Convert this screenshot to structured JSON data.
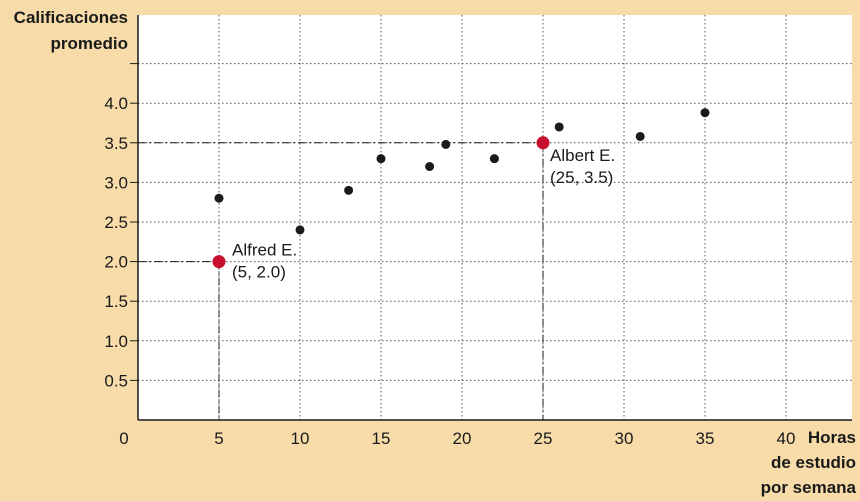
{
  "chart_data": {
    "type": "scatter",
    "ylabel": [
      "Calificaciones",
      "promedio"
    ],
    "xlabel": [
      "Horas",
      "de estudio",
      "por semana"
    ],
    "xlim": [
      0,
      42
    ],
    "ylim": [
      0,
      4.6
    ],
    "x_ticks": [
      0,
      5,
      10,
      15,
      20,
      25,
      30,
      35,
      40
    ],
    "y_ticks": [
      "0.5",
      "1.0",
      "1.5",
      "2.0",
      "2.5",
      "3.0",
      "3.5",
      "4.0"
    ],
    "y_grid": [
      0.5,
      1.0,
      1.5,
      2.0,
      2.5,
      3.0,
      3.5,
      4.0,
      4.5
    ],
    "grid": true,
    "points": [
      {
        "x": 5,
        "y": 2.8
      },
      {
        "x": 10,
        "y": 2.4
      },
      {
        "x": 13,
        "y": 2.9
      },
      {
        "x": 15,
        "y": 3.3
      },
      {
        "x": 18,
        "y": 3.2
      },
      {
        "x": 19,
        "y": 3.48
      },
      {
        "x": 22,
        "y": 3.3
      },
      {
        "x": 26,
        "y": 3.7
      },
      {
        "x": 31,
        "y": 3.58
      },
      {
        "x": 35,
        "y": 3.88
      }
    ],
    "highlighted": [
      {
        "x": 5,
        "y": 2.0,
        "name": "Alfred E.",
        "coords": "(5, 2.0)"
      },
      {
        "x": 25,
        "y": 3.5,
        "name": "Albert E.",
        "coords": "(25, 3.5)"
      }
    ],
    "colors": {
      "background": "#f7dcaa",
      "plot_area": "#ffffff",
      "point": "#1a1a1a",
      "highlight": "#c8102e",
      "grid": "#555555"
    }
  }
}
